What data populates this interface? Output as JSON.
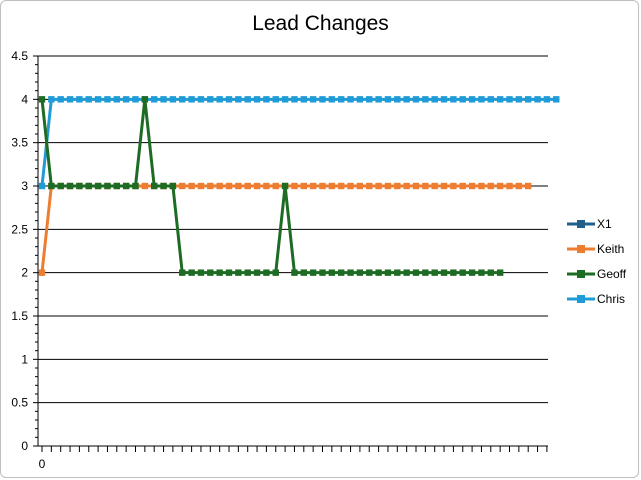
{
  "chart_data": {
    "type": "line",
    "title": "Lead Changes",
    "xlabel": "",
    "ylabel": "",
    "ylim": [
      0,
      4.5
    ],
    "yticks": [
      "0",
      "0.5",
      "1",
      "1.5",
      "2",
      "2.5",
      "3",
      "3.5",
      "4",
      "4.5"
    ],
    "xticks": [
      "0"
    ],
    "grid": true,
    "legend_position": "right",
    "series": [
      {
        "name": "X1",
        "color": "#1f5f8b",
        "values": []
      },
      {
        "name": "Keith",
        "color": "#ed7d31",
        "values": [
          2,
          3,
          3,
          3,
          3,
          3,
          3,
          3,
          3,
          3,
          3,
          3,
          3,
          3,
          3,
          3,
          3,
          3,
          3,
          3,
          3,
          3,
          3,
          3,
          3,
          3,
          3,
          3,
          3,
          3,
          3,
          3,
          3,
          3,
          3,
          3,
          3,
          3,
          3,
          3,
          3,
          3,
          3,
          3,
          3,
          3,
          3,
          3,
          3,
          3,
          3,
          3,
          3
        ]
      },
      {
        "name": "Geoff",
        "color": "#1e6b24",
        "values": [
          4,
          3,
          3,
          3,
          3,
          3,
          3,
          3,
          3,
          3,
          3,
          4,
          3,
          3,
          3,
          2,
          2,
          2,
          2,
          2,
          2,
          2,
          2,
          2,
          2,
          2,
          3,
          2,
          2,
          2,
          2,
          2,
          2,
          2,
          2,
          2,
          2,
          2,
          2,
          2,
          2,
          2,
          2,
          2,
          2,
          2,
          2,
          2,
          2,
          2
        ]
      },
      {
        "name": "Chris",
        "color": "#1f9bd7",
        "values": [
          3,
          4,
          4,
          4,
          4,
          4,
          4,
          4,
          4,
          4,
          4,
          4,
          4,
          4,
          4,
          4,
          4,
          4,
          4,
          4,
          4,
          4,
          4,
          4,
          4,
          4,
          4,
          4,
          4,
          4,
          4,
          4,
          4,
          4,
          4,
          4,
          4,
          4,
          4,
          4,
          4,
          4,
          4,
          4,
          4,
          4,
          4,
          4,
          4,
          4,
          4,
          4,
          4,
          4,
          4,
          4
        ]
      }
    ]
  }
}
